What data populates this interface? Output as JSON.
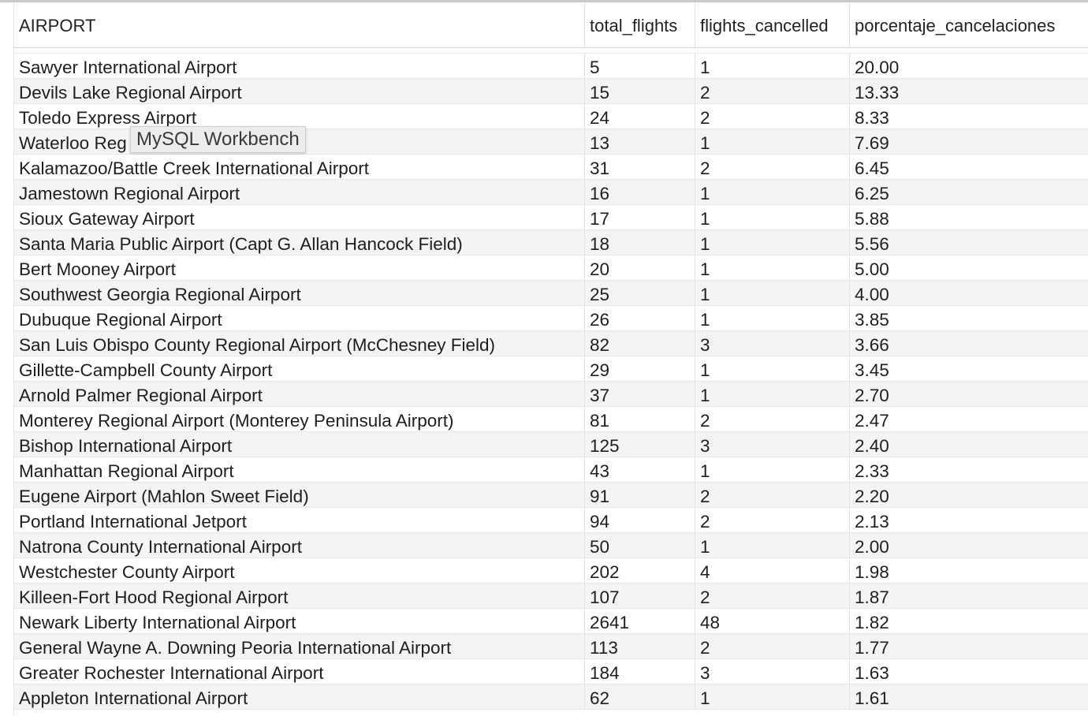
{
  "columns": [
    "AIRPORT",
    "total_flights",
    "flights_cancelled",
    "porcentaje_cancelaciones"
  ],
  "rows": [
    [
      "Sawyer International Airport",
      "5",
      "1",
      "20.00"
    ],
    [
      "Devils Lake Regional Airport",
      "15",
      "2",
      "13.33"
    ],
    [
      "Toledo Express Airport",
      "24",
      "2",
      "8.33"
    ],
    [
      "Waterloo Reg",
      "13",
      "1",
      "7.69"
    ],
    [
      "Kalamazoo/Battle Creek International Airport",
      "31",
      "2",
      "6.45"
    ],
    [
      "Jamestown Regional Airport",
      "16",
      "1",
      "6.25"
    ],
    [
      "Sioux Gateway Airport",
      "17",
      "1",
      "5.88"
    ],
    [
      "Santa Maria Public Airport (Capt G. Allan Hancock Field)",
      "18",
      "1",
      "5.56"
    ],
    [
      "Bert Mooney Airport",
      "20",
      "1",
      "5.00"
    ],
    [
      "Southwest Georgia Regional Airport",
      "25",
      "1",
      "4.00"
    ],
    [
      "Dubuque Regional Airport",
      "26",
      "1",
      "3.85"
    ],
    [
      "San Luis Obispo County Regional Airport (McChesney Field)",
      "82",
      "3",
      "3.66"
    ],
    [
      "Gillette-Campbell County Airport",
      "29",
      "1",
      "3.45"
    ],
    [
      "Arnold Palmer Regional Airport",
      "37",
      "1",
      "2.70"
    ],
    [
      "Monterey Regional Airport (Monterey Peninsula Airport)",
      "81",
      "2",
      "2.47"
    ],
    [
      "Bishop International Airport",
      "125",
      "3",
      "2.40"
    ],
    [
      "Manhattan Regional Airport",
      "43",
      "1",
      "2.33"
    ],
    [
      "Eugene Airport (Mahlon Sweet Field)",
      "91",
      "2",
      "2.20"
    ],
    [
      "Portland International Jetport",
      "94",
      "2",
      "2.13"
    ],
    [
      "Natrona County International Airport",
      "50",
      "1",
      "2.00"
    ],
    [
      "Westchester County Airport",
      "202",
      "4",
      "1.98"
    ],
    [
      "Killeen-Fort Hood Regional Airport",
      "107",
      "2",
      "1.87"
    ],
    [
      "Newark Liberty International Airport",
      "2641",
      "48",
      "1.82"
    ],
    [
      "General Wayne A. Downing Peoria International Airport",
      "113",
      "2",
      "1.77"
    ],
    [
      "Greater Rochester International Airport",
      "184",
      "3",
      "1.63"
    ],
    [
      "Appleton International Airport",
      "62",
      "1",
      "1.61"
    ]
  ],
  "tooltip": "MySQL Workbench"
}
